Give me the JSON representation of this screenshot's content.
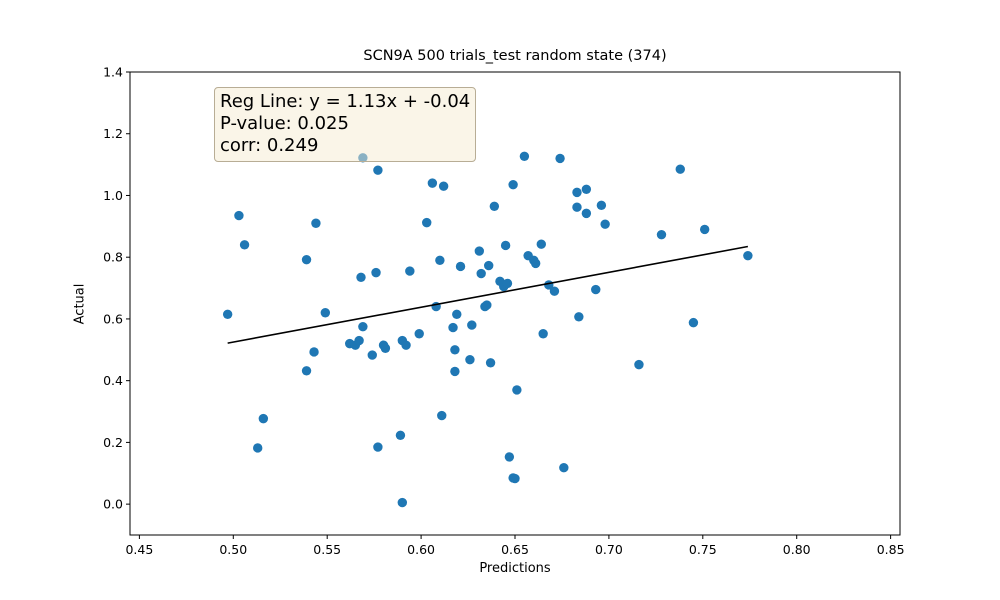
{
  "chart_data": {
    "type": "scatter",
    "title": "SCN9A 500 trials_test random state (374)",
    "xlabel": "Predictions",
    "ylabel": "Actual",
    "xlim": [
      0.445,
      0.855
    ],
    "ylim": [
      -0.1,
      1.4
    ],
    "xticks": [
      "0.45",
      "0.50",
      "0.55",
      "0.60",
      "0.65",
      "0.70",
      "0.75",
      "0.80",
      "0.85"
    ],
    "yticks": [
      "0.0",
      "0.2",
      "0.4",
      "0.6",
      "0.8",
      "1.0",
      "1.2",
      "1.4"
    ],
    "grid": false,
    "colors": {
      "points": "#1f77b4",
      "regression_line": "#000000"
    },
    "annotation": {
      "line1": "Reg Line: y = 1.13x + -0.04",
      "line2": "P-value: 0.025",
      "line3": "corr: 0.249"
    },
    "regression_line": {
      "slope": 1.13,
      "intercept": -0.04,
      "x_range": [
        0.497,
        0.774
      ]
    },
    "points": [
      {
        "x": 0.497,
        "y": 0.615
      },
      {
        "x": 0.503,
        "y": 0.935
      },
      {
        "x": 0.506,
        "y": 0.84
      },
      {
        "x": 0.513,
        "y": 0.182
      },
      {
        "x": 0.516,
        "y": 0.277
      },
      {
        "x": 0.539,
        "y": 0.792
      },
      {
        "x": 0.539,
        "y": 0.432
      },
      {
        "x": 0.543,
        "y": 0.493
      },
      {
        "x": 0.544,
        "y": 0.91
      },
      {
        "x": 0.549,
        "y": 0.62
      },
      {
        "x": 0.562,
        "y": 0.52
      },
      {
        "x": 0.565,
        "y": 0.515
      },
      {
        "x": 0.567,
        "y": 0.53
      },
      {
        "x": 0.568,
        "y": 0.735
      },
      {
        "x": 0.569,
        "y": 0.575
      },
      {
        "x": 0.569,
        "y": 1.122
      },
      {
        "x": 0.574,
        "y": 0.483
      },
      {
        "x": 0.576,
        "y": 0.75
      },
      {
        "x": 0.577,
        "y": 1.082
      },
      {
        "x": 0.577,
        "y": 0.185
      },
      {
        "x": 0.58,
        "y": 0.515
      },
      {
        "x": 0.581,
        "y": 0.505
      },
      {
        "x": 0.589,
        "y": 0.223
      },
      {
        "x": 0.59,
        "y": 0.53
      },
      {
        "x": 0.59,
        "y": 0.005
      },
      {
        "x": 0.592,
        "y": 0.515
      },
      {
        "x": 0.594,
        "y": 0.755
      },
      {
        "x": 0.599,
        "y": 0.552
      },
      {
        "x": 0.603,
        "y": 0.912
      },
      {
        "x": 0.606,
        "y": 1.04
      },
      {
        "x": 0.608,
        "y": 0.64
      },
      {
        "x": 0.61,
        "y": 0.79
      },
      {
        "x": 0.611,
        "y": 0.287
      },
      {
        "x": 0.612,
        "y": 1.03
      },
      {
        "x": 0.617,
        "y": 0.572
      },
      {
        "x": 0.618,
        "y": 0.5
      },
      {
        "x": 0.618,
        "y": 0.43
      },
      {
        "x": 0.619,
        "y": 0.615
      },
      {
        "x": 0.621,
        "y": 0.77
      },
      {
        "x": 0.626,
        "y": 0.468
      },
      {
        "x": 0.627,
        "y": 0.58
      },
      {
        "x": 0.631,
        "y": 0.82
      },
      {
        "x": 0.632,
        "y": 0.747
      },
      {
        "x": 0.634,
        "y": 0.64
      },
      {
        "x": 0.635,
        "y": 0.645
      },
      {
        "x": 0.636,
        "y": 0.773
      },
      {
        "x": 0.637,
        "y": 0.458
      },
      {
        "x": 0.639,
        "y": 0.965
      },
      {
        "x": 0.642,
        "y": 0.722
      },
      {
        "x": 0.644,
        "y": 0.705
      },
      {
        "x": 0.645,
        "y": 0.838
      },
      {
        "x": 0.646,
        "y": 0.715
      },
      {
        "x": 0.647,
        "y": 0.153
      },
      {
        "x": 0.649,
        "y": 1.035
      },
      {
        "x": 0.649,
        "y": 0.085
      },
      {
        "x": 0.65,
        "y": 0.083
      },
      {
        "x": 0.651,
        "y": 0.37
      },
      {
        "x": 0.655,
        "y": 1.127
      },
      {
        "x": 0.657,
        "y": 0.805
      },
      {
        "x": 0.66,
        "y": 0.79
      },
      {
        "x": 0.661,
        "y": 0.78
      },
      {
        "x": 0.664,
        "y": 0.842
      },
      {
        "x": 0.665,
        "y": 0.552
      },
      {
        "x": 0.668,
        "y": 0.71
      },
      {
        "x": 0.671,
        "y": 0.69
      },
      {
        "x": 0.674,
        "y": 1.12
      },
      {
        "x": 0.676,
        "y": 0.118
      },
      {
        "x": 0.683,
        "y": 1.01
      },
      {
        "x": 0.683,
        "y": 0.962
      },
      {
        "x": 0.684,
        "y": 0.607
      },
      {
        "x": 0.688,
        "y": 1.02
      },
      {
        "x": 0.688,
        "y": 0.942
      },
      {
        "x": 0.693,
        "y": 0.695
      },
      {
        "x": 0.696,
        "y": 0.968
      },
      {
        "x": 0.698,
        "y": 0.907
      },
      {
        "x": 0.716,
        "y": 0.452
      },
      {
        "x": 0.728,
        "y": 0.873
      },
      {
        "x": 0.738,
        "y": 1.085
      },
      {
        "x": 0.745,
        "y": 0.588
      },
      {
        "x": 0.751,
        "y": 0.89
      },
      {
        "x": 0.774,
        "y": 0.805
      }
    ]
  }
}
